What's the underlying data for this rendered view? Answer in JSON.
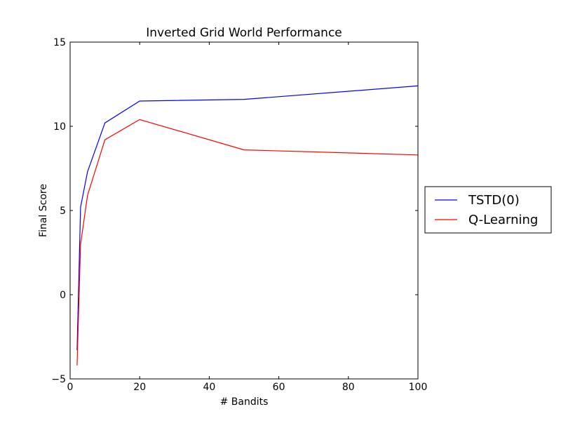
{
  "chart_data": {
    "type": "line",
    "title": "Inverted Grid World Performance",
    "xlabel": "# Bandits",
    "ylabel": "Final Score",
    "xlim": [
      0,
      100
    ],
    "ylim": [
      -5,
      15
    ],
    "xticks": [
      0,
      20,
      40,
      60,
      80,
      100
    ],
    "yticks": [
      -5,
      0,
      5,
      10,
      15
    ],
    "grid": false,
    "legend_position": "outside-right",
    "series": [
      {
        "name": "TSTD(0)",
        "color": "#0000ff",
        "x": [
          2,
          3,
          5,
          10,
          20,
          50,
          100
        ],
        "y": [
          -3.3,
          5.2,
          7.3,
          10.2,
          11.5,
          11.6,
          12.4
        ]
      },
      {
        "name": "Q-Learning",
        "color": "#ff0000",
        "x": [
          2,
          3,
          5,
          10,
          20,
          50,
          100
        ],
        "y": [
          -4.2,
          3.0,
          5.9,
          9.2,
          10.4,
          8.6,
          8.3
        ]
      }
    ]
  }
}
